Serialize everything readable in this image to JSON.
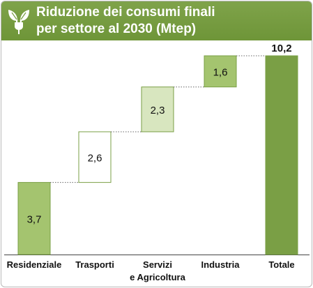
{
  "header": {
    "title_line1": "Riduzione dei consumi finali",
    "title_line2": "per settore al 2030 (Mtep)",
    "logo_icon": "leaf-plug-icon",
    "color": "#7a9f45"
  },
  "chart_data": {
    "type": "bar",
    "subtype": "waterfall",
    "title": "Riduzione dei consumi finali per settore al 2030 (Mtep)",
    "categories": [
      "Residenziale",
      "Trasporti",
      "Servizi e Agricoltura",
      "Industria",
      "Totale"
    ],
    "category_labels": [
      [
        "Residenziale"
      ],
      [
        "Trasporti"
      ],
      [
        "Servizi",
        "e Agricoltura"
      ],
      [
        "Industria"
      ],
      [
        "Totale"
      ]
    ],
    "values": [
      3.7,
      2.6,
      2.3,
      1.6,
      10.2
    ],
    "value_labels": [
      "3,7",
      "2,6",
      "2,3",
      "1,6",
      "10,2"
    ],
    "colors": [
      "#a4c46f",
      "#ffffff",
      "#d8e6bf",
      "#a4c46f",
      "#7a9f45"
    ],
    "ylim": [
      0,
      10.2
    ],
    "grid": false,
    "legend": "none"
  }
}
